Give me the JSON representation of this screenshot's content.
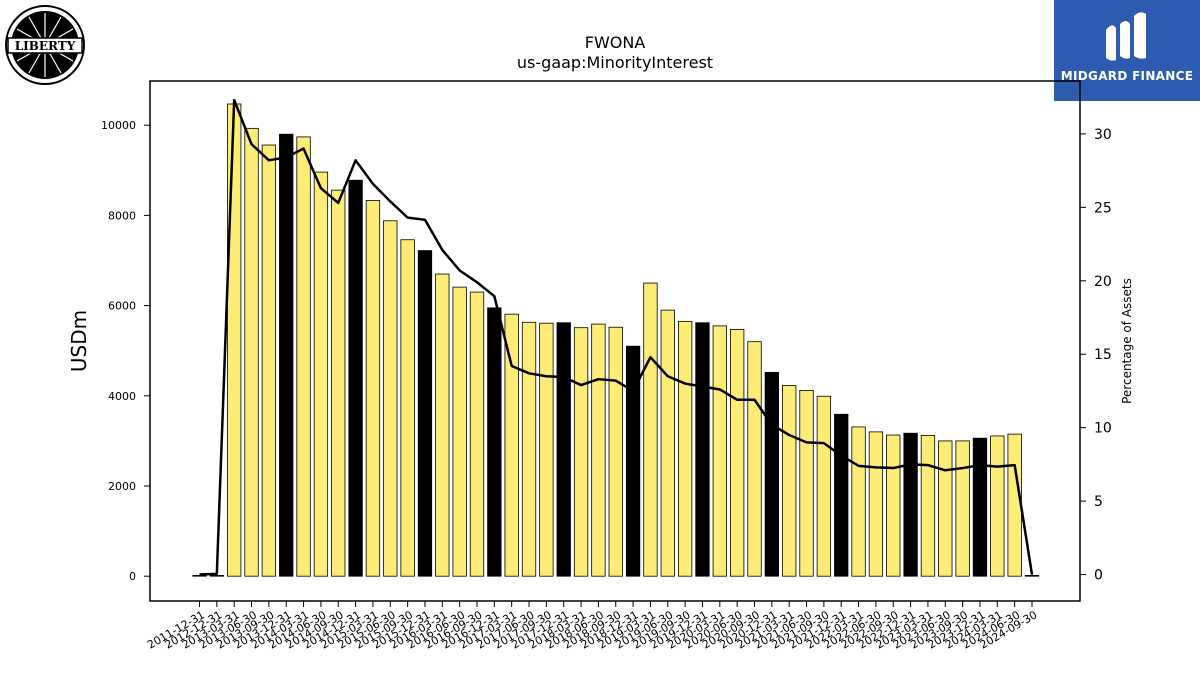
{
  "header": {
    "title": "FWONA",
    "subtitle": "us-gaap:MinorityInterest"
  },
  "logos": {
    "left_text": "LIBERTY",
    "right_text": "MIDGARD FINANCE",
    "right_bg_color": "#2d5bb0"
  },
  "chart_data": {
    "type": "bar",
    "title": "FWONA",
    "subtitle": "us-gaap:MinorityInterest",
    "ylabel": "USDm",
    "y2label": "Percentage of Assets",
    "ylim": [
      -550,
      10980
    ],
    "y2lim": [
      -1.8,
      33.6
    ],
    "yticks": [
      0,
      2000,
      4000,
      6000,
      8000,
      10000
    ],
    "y2ticks": [
      0,
      5,
      10,
      15,
      20,
      25,
      30
    ],
    "grid": false,
    "colors": {
      "bar": "#fdec76",
      "bar_q4": "#000000",
      "line": "#000000"
    },
    "categories": [
      "2011-12-31",
      "2012-12-31",
      "2013-03-31",
      "2013-06-30",
      "2013-09-30",
      "2013-12-31",
      "2014-03-31",
      "2014-06-30",
      "2014-09-30",
      "2014-12-31",
      "2015-03-31",
      "2015-06-30",
      "2015-09-30",
      "2015-12-31",
      "2016-03-31",
      "2016-06-30",
      "2016-09-30",
      "2016-12-31",
      "2017-03-31",
      "2017-06-30",
      "2017-09-30",
      "2017-12-31",
      "2018-03-31",
      "2018-06-30",
      "2018-09-30",
      "2018-12-31",
      "2019-03-31",
      "2019-06-30",
      "2019-09-30",
      "2019-12-31",
      "2020-03-31",
      "2020-06-30",
      "2020-09-30",
      "2020-12-31",
      "2021-03-31",
      "2021-06-30",
      "2021-09-30",
      "2021-12-31",
      "2022-03-31",
      "2022-06-30",
      "2022-09-30",
      "2022-12-31",
      "2023-03-31",
      "2023-06-30",
      "2023-09-30",
      "2023-12-31",
      "2024-03-31",
      "2024-06-30",
      "2024-09-30"
    ],
    "series": [
      {
        "kind": "bar",
        "values": [
          0,
          0,
          10470,
          9930,
          9560,
          9800,
          9740,
          8960,
          8560,
          8780,
          8330,
          7880,
          7460,
          7220,
          6700,
          6410,
          6300,
          5950,
          5810,
          5630,
          5610,
          5620,
          5510,
          5590,
          5520,
          5100,
          6500,
          5900,
          5650,
          5620,
          5550,
          5470,
          5200,
          4520,
          4230,
          4120,
          3990,
          3590,
          3310,
          3200,
          3130,
          3170,
          3120,
          3000,
          3000,
          3060,
          3110,
          3150,
          0
        ]
      },
      {
        "kind": "line",
        "values": [
          0,
          0.05,
          32.3,
          29.3,
          28.2,
          28.4,
          29.0,
          26.3,
          25.3,
          28.2,
          26.6,
          25.4,
          24.3,
          24.15,
          22.1,
          20.7,
          19.9,
          18.95,
          14.2,
          13.7,
          13.5,
          13.45,
          12.9,
          13.3,
          13.2,
          12.5,
          14.8,
          13.5,
          13.0,
          12.8,
          12.6,
          11.9,
          11.9,
          10.2,
          9.5,
          9.0,
          8.95,
          8.1,
          7.4,
          7.3,
          7.25,
          7.5,
          7.45,
          7.1,
          7.25,
          7.45,
          7.35,
          7.45,
          0
        ]
      }
    ]
  }
}
